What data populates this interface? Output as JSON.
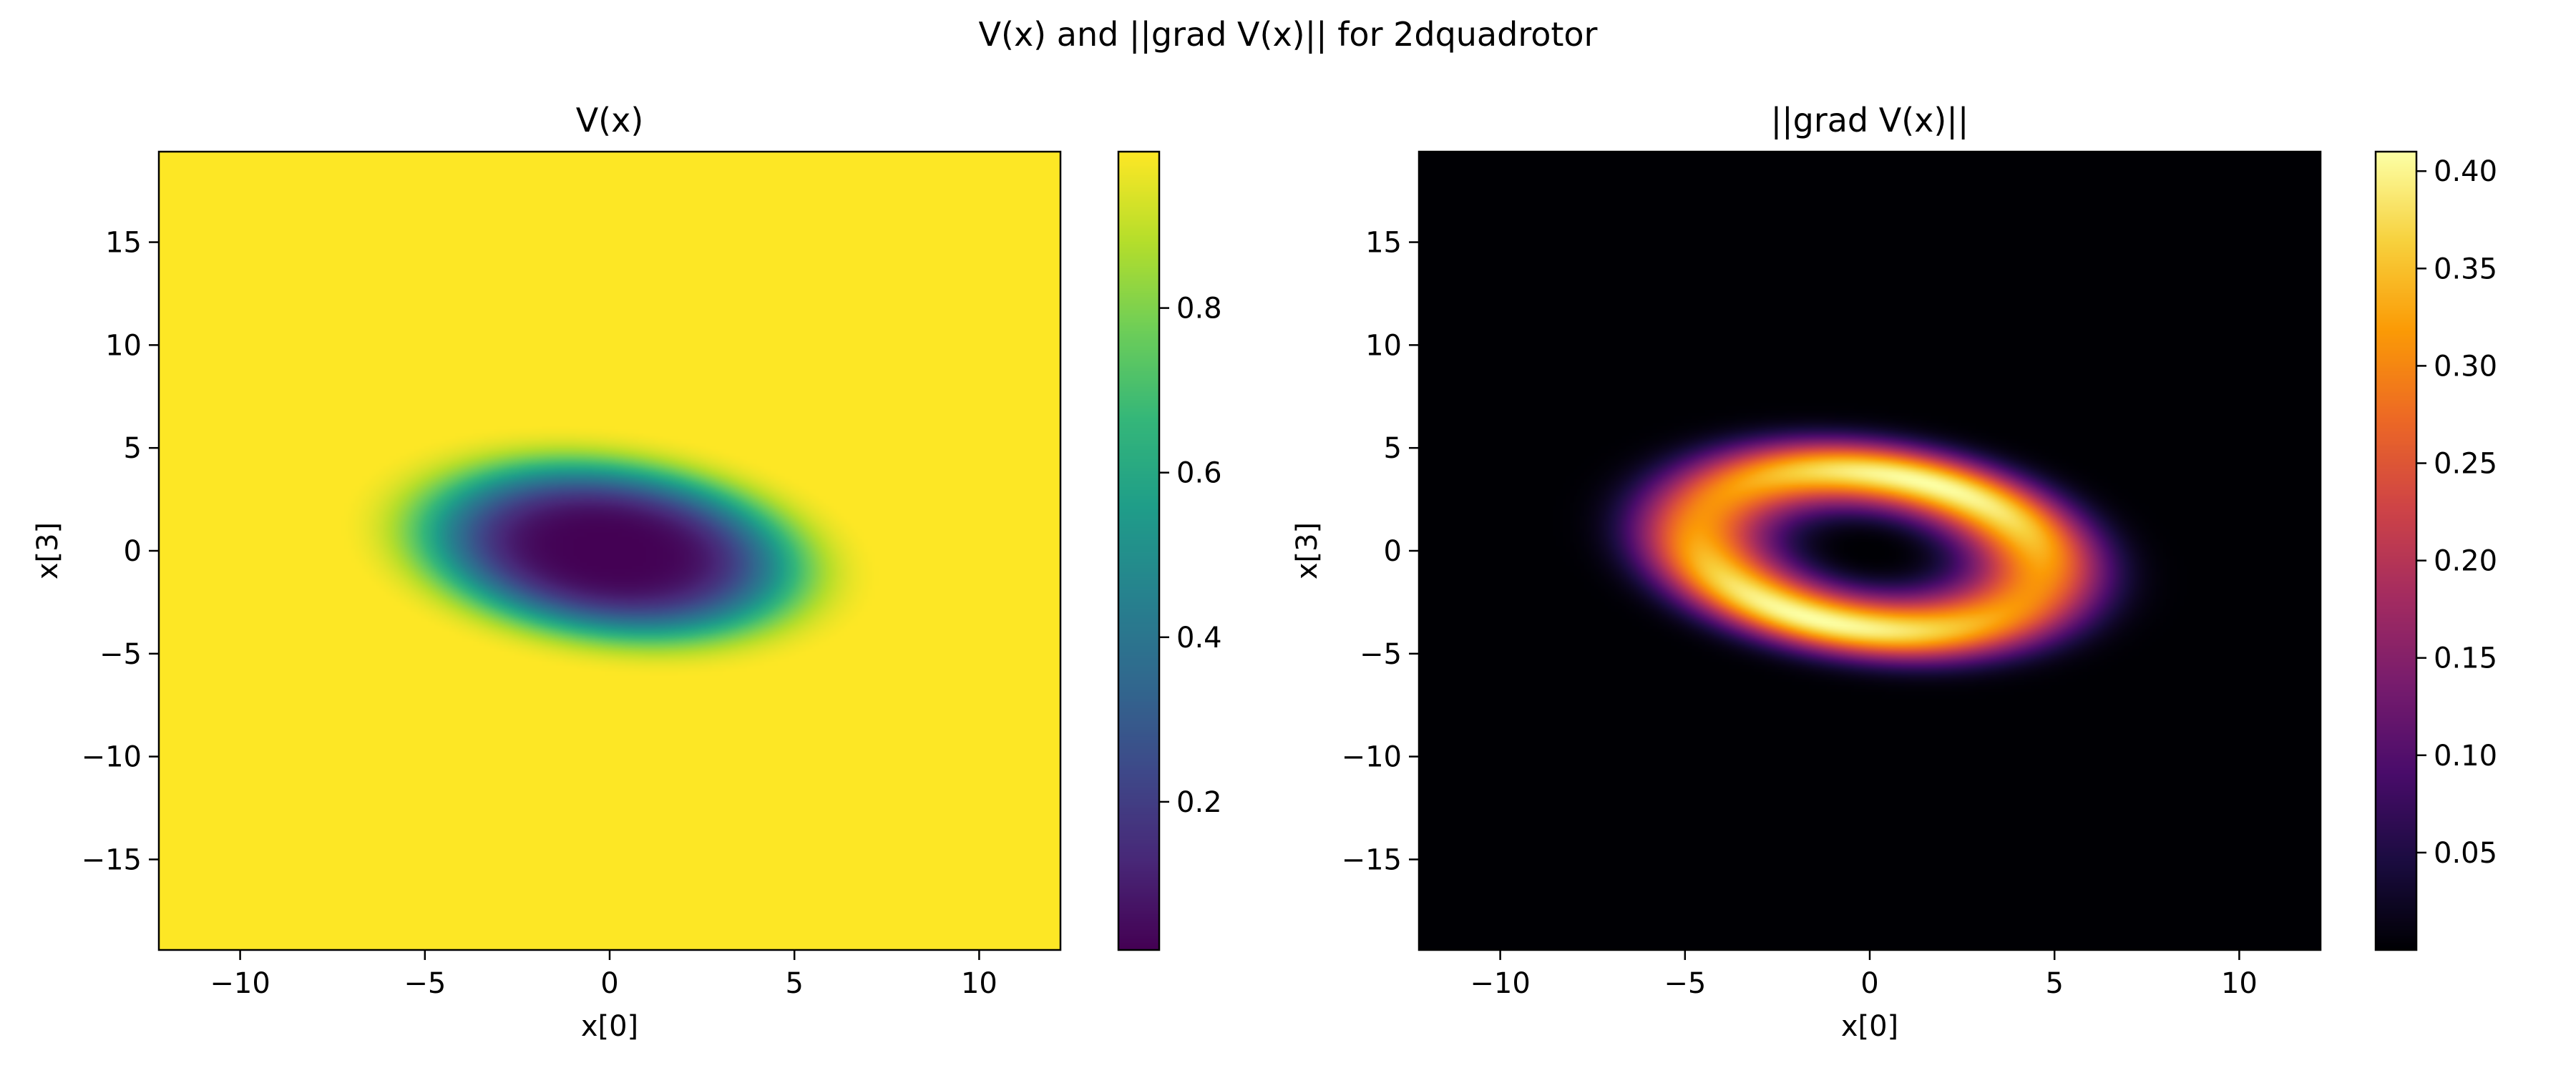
{
  "chart_data": {
    "type": "heatmap",
    "title": "V(x) and ||grad V(x)|| for 2dquadrotor",
    "panels": [
      {
        "title": "V(x)",
        "field": "value",
        "xlabel": "x[0]",
        "ylabel": "x[3]",
        "xlim": [
          -12.2,
          12.2
        ],
        "ylim": [
          -19.4,
          19.4
        ],
        "xticks": [
          -10,
          -5,
          0,
          5,
          10
        ],
        "yticks": [
          -15,
          -10,
          -5,
          0,
          5,
          10,
          15
        ],
        "xtick_labels": [
          "−10",
          "−5",
          "0",
          "5",
          "10"
        ],
        "ytick_labels": [
          "−15",
          "−10",
          "−5",
          "0",
          "5",
          "10",
          "15"
        ],
        "colormap": "viridis",
        "value_range": [
          0.02,
          0.99
        ],
        "colorbar_ticks": [
          0.2,
          0.4,
          0.6,
          0.8
        ],
        "colorbar_tick_labels": [
          "0.2",
          "0.4",
          "0.6",
          "0.8"
        ]
      },
      {
        "title": "||grad V(x)||",
        "field": "gradient_norm",
        "xlabel": "x[0]",
        "ylabel": "x[3]",
        "xlim": [
          -12.2,
          12.2
        ],
        "ylim": [
          -19.4,
          19.4
        ],
        "xticks": [
          -10,
          -5,
          0,
          5,
          10
        ],
        "yticks": [
          -15,
          -10,
          -5,
          0,
          5,
          10,
          15
        ],
        "xtick_labels": [
          "−10",
          "−5",
          "0",
          "5",
          "10"
        ],
        "ytick_labels": [
          "−15",
          "−10",
          "−5",
          "0",
          "5",
          "10",
          "15"
        ],
        "colormap": "inferno",
        "value_range": [
          0.0,
          0.41
        ],
        "colorbar_ticks": [
          0.05,
          0.1,
          0.15,
          0.2,
          0.25,
          0.3,
          0.35,
          0.4
        ],
        "colorbar_tick_labels": [
          "0.05",
          "0.10",
          "0.15",
          "0.20",
          "0.25",
          "0.30",
          "0.35",
          "0.40"
        ]
      }
    ],
    "field_description": {
      "center": [
        0,
        0
      ],
      "ellipse_orientation_deg": -25,
      "minimum_value": 0.02,
      "gradient_peaks": [
        [
          4.3,
          0.5
        ],
        [
          -4.0,
          -0.6
        ]
      ],
      "max_gradient": 0.41
    }
  },
  "colors": {
    "viridis_stops": [
      "#440154",
      "#482878",
      "#3e4989",
      "#31688e",
      "#26828e",
      "#1f9e89",
      "#35b779",
      "#6ece58",
      "#b5de2b",
      "#fde725"
    ],
    "inferno_stops": [
      "#000004",
      "#1b0c41",
      "#4a0c6b",
      "#781c6d",
      "#a52c60",
      "#cf4446",
      "#ed6925",
      "#fb9b06",
      "#f7d13d",
      "#fcffa4"
    ]
  }
}
